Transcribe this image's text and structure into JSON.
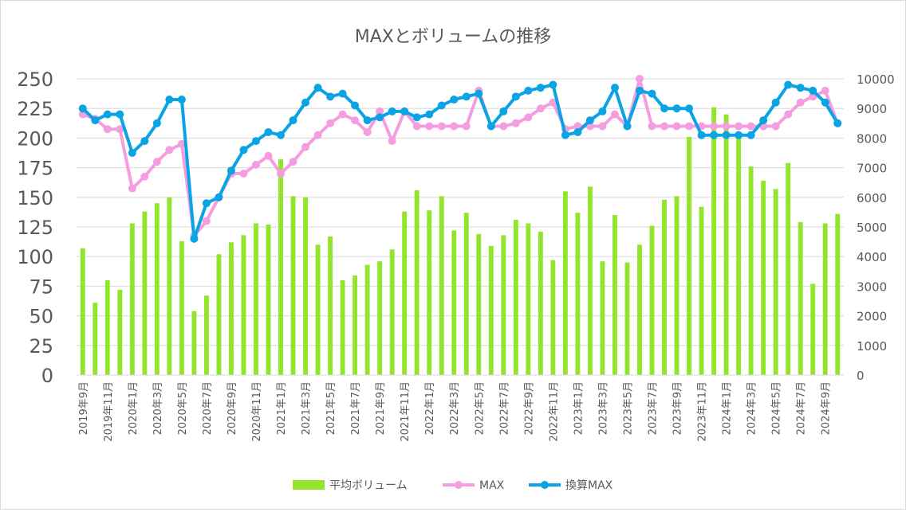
{
  "chart_data": {
    "type": "bar+line",
    "title": "MAXとボリュームの推移",
    "categories": [
      "2019年9月",
      "2019年10月",
      "2019年11月",
      "2019年12月",
      "2020年1月",
      "2020年2月",
      "2020年3月",
      "2020年4月",
      "2020年5月",
      "2020年6月",
      "2020年7月",
      "2020年8月",
      "2020年9月",
      "2020年10月",
      "2020年11月",
      "2020年12月",
      "2021年1月",
      "2021年2月",
      "2021年3月",
      "2021年4月",
      "2021年5月",
      "2021年6月",
      "2021年7月",
      "2021年8月",
      "2021年9月",
      "2021年10月",
      "2021年11月",
      "2021年12月",
      "2022年1月",
      "2022年2月",
      "2022年3月",
      "2022年4月",
      "2022年5月",
      "2022年6月",
      "2022年7月",
      "2022年8月",
      "2022年9月",
      "2022年10月",
      "2022年11月",
      "2022年12月",
      "2023年1月",
      "2023年2月",
      "2023年3月",
      "2023年4月",
      "2023年5月",
      "2023年6月",
      "2023年7月",
      "2023年8月",
      "2023年9月",
      "2023年10月",
      "2023年11月",
      "2023年12月",
      "2024年1月",
      "2024年2月",
      "2024年3月",
      "2024年4月",
      "2024年5月",
      "2024年6月",
      "2024年7月",
      "2024年8月",
      "2024年9月",
      "2024年10月"
    ],
    "tick_labels": [
      "2019年9月",
      "2019年11月",
      "2020年1月",
      "2020年3月",
      "2020年5月",
      "2020年7月",
      "2020年9月",
      "2020年11月",
      "2021年1月",
      "2021年3月",
      "2021年5月",
      "2021年7月",
      "2021年9月",
      "2021年11月",
      "2022年1月",
      "2022年3月",
      "2022年5月",
      "2022年7月",
      "2022年9月",
      "2022年11月",
      "2023年1月",
      "2023年3月",
      "2023年5月",
      "2023年7月",
      "2023年9月",
      "2023年11月",
      "2024年1月",
      "2024年3月",
      "2024年5月",
      "2024年7月",
      "2024年9月"
    ],
    "y_left": {
      "min": 0,
      "max": 250,
      "ticks": [
        0,
        25,
        50,
        75,
        100,
        125,
        150,
        175,
        200,
        225,
        250
      ]
    },
    "y_right": {
      "min": 0,
      "max": 10000,
      "ticks": [
        0,
        1000,
        2000,
        3000,
        4000,
        5000,
        6000,
        7000,
        8000,
        9000,
        10000
      ]
    },
    "grid": true,
    "legend_position": "bottom",
    "series": [
      {
        "name": "平均ボリューム",
        "type": "bar",
        "axis": "left",
        "color": "#92e52c",
        "values": [
          107,
          61,
          80,
          72,
          128,
          138,
          145,
          150,
          113,
          54,
          67,
          102,
          112,
          118,
          128,
          127,
          182,
          151,
          150,
          110,
          117,
          80,
          84,
          93,
          96,
          106,
          138,
          156,
          139,
          151,
          122,
          137,
          119,
          109,
          118,
          131,
          128,
          121,
          97,
          155,
          137,
          159,
          96,
          135,
          95,
          110,
          126,
          148,
          151,
          201,
          142,
          226,
          220,
          200,
          176,
          164,
          157,
          179,
          129,
          77,
          128,
          136
        ]
      },
      {
        "name": "MAX",
        "type": "line",
        "axis": "right",
        "color": "#f49ee0",
        "values": [
          8800,
          8650,
          8300,
          8300,
          6300,
          6700,
          7200,
          7600,
          7800,
          4700,
          5200,
          6000,
          6800,
          6800,
          7100,
          7400,
          6800,
          7200,
          7700,
          8100,
          8500,
          8800,
          8600,
          8200,
          8900,
          7900,
          8900,
          8400,
          8400,
          8400,
          8400,
          8400,
          9600,
          8400,
          8400,
          8500,
          8700,
          9000,
          9200,
          8300,
          8400,
          8400,
          8400,
          8800,
          8400,
          10000,
          8400,
          8400,
          8400,
          8400,
          8400,
          8400,
          8400,
          8400,
          8400,
          8400,
          8400,
          8800,
          9200,
          9400,
          9600,
          8500
        ]
      },
      {
        "name": "換算MAX",
        "type": "line",
        "axis": "right",
        "color": "#0aa3e3",
        "values": [
          9000,
          8600,
          8800,
          8800,
          7500,
          7900,
          8500,
          9300,
          9300,
          4600,
          5800,
          6000,
          6900,
          7600,
          7900,
          8200,
          8100,
          8600,
          9200,
          9700,
          9400,
          9500,
          9100,
          8600,
          8700,
          8900,
          8900,
          8700,
          8800,
          9100,
          9300,
          9400,
          9500,
          8400,
          8900,
          9400,
          9600,
          9700,
          9800,
          8100,
          8200,
          8600,
          8900,
          9700,
          8400,
          9600,
          9500,
          9000,
          9000,
          9000,
          8100,
          8100,
          8100,
          8100,
          8100,
          8600,
          9200,
          9800,
          9700,
          9600,
          9200,
          8500
        ]
      }
    ]
  }
}
